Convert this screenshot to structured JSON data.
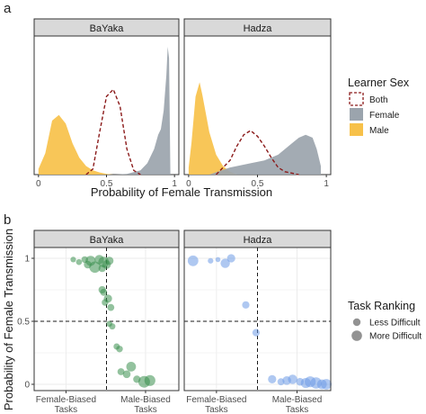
{
  "chart_data": [
    {
      "id": "a",
      "panel_letter": "a",
      "type": "area",
      "xlabel": "Probability of Female Transmission",
      "ylabel": "",
      "xlim": [
        0,
        1
      ],
      "x_ticks": [
        0,
        0.5,
        1
      ],
      "x_tick_labels": [
        "0",
        "0.5",
        "1"
      ],
      "grid": false,
      "legend_position": "right",
      "legend": {
        "title": "Learner Sex",
        "entries": [
          {
            "label": "Both",
            "color": "#8b1a1a",
            "style": "dashed-outline"
          },
          {
            "label": "Female",
            "color": "#9ba4ad",
            "style": "fill"
          },
          {
            "label": "Male",
            "color": "#f7c14a",
            "style": "fill"
          }
        ]
      },
      "facets": [
        {
          "label": "BaYaka",
          "series": [
            {
              "name": "Male",
              "color": "#f7c14a",
              "x": [
                0.0,
                0.05,
                0.1,
                0.15,
                0.2,
                0.25,
                0.3,
                0.35,
                0.4,
                0.45,
                0.5,
                0.55,
                0.6
              ],
              "y": [
                0.04,
                0.15,
                0.38,
                0.42,
                0.36,
                0.22,
                0.12,
                0.06,
                0.03,
                0.015,
                0.005,
                0.0,
                0.0
              ]
            },
            {
              "name": "Female",
              "color": "#9ba4ad",
              "x": [
                0.55,
                0.65,
                0.75,
                0.8,
                0.85,
                0.88,
                0.9,
                0.92,
                0.94,
                0.95,
                0.96,
                0.97
              ],
              "y": [
                0.0,
                0.005,
                0.03,
                0.08,
                0.18,
                0.28,
                0.32,
                0.45,
                0.7,
                0.9,
                0.82,
                0.0
              ]
            },
            {
              "name": "Both",
              "color": "#8b1a1a",
              "x": [
                0.35,
                0.4,
                0.45,
                0.5,
                0.55,
                0.6,
                0.65,
                0.7,
                0.75
              ],
              "y": [
                0.0,
                0.04,
                0.3,
                0.55,
                0.6,
                0.48,
                0.18,
                0.03,
                0.0
              ]
            }
          ]
        },
        {
          "label": "Hadza",
          "series": [
            {
              "name": "Male",
              "color": "#f7c14a",
              "x": [
                0.0,
                0.02,
                0.05,
                0.08,
                0.1,
                0.15,
                0.2,
                0.25,
                0.3,
                0.35
              ],
              "y": [
                0.05,
                0.22,
                0.55,
                0.65,
                0.56,
                0.3,
                0.14,
                0.06,
                0.02,
                0.0
              ]
            },
            {
              "name": "Female",
              "color": "#9ba4ad",
              "x": [
                0.15,
                0.3,
                0.45,
                0.55,
                0.65,
                0.75,
                0.8,
                0.85,
                0.9,
                0.93,
                0.96
              ],
              "y": [
                0.0,
                0.05,
                0.08,
                0.1,
                0.14,
                0.22,
                0.26,
                0.28,
                0.26,
                0.18,
                0.06
              ]
            },
            {
              "name": "Both",
              "color": "#8b1a1a",
              "x": [
                0.2,
                0.3,
                0.35,
                0.4,
                0.45,
                0.5,
                0.55,
                0.6,
                0.65,
                0.7,
                0.8
              ],
              "y": [
                0.0,
                0.1,
                0.2,
                0.28,
                0.31,
                0.27,
                0.2,
                0.12,
                0.05,
                0.02,
                0.0
              ]
            }
          ]
        }
      ]
    },
    {
      "id": "b",
      "panel_letter": "b",
      "type": "scatter",
      "xlabel": "",
      "ylabel": "Probability of Female Transmission",
      "ylim": [
        0,
        1
      ],
      "y_ticks": [
        0,
        0.5,
        1
      ],
      "y_tick_labels": [
        "0",
        "0.5",
        "1"
      ],
      "x_categories": [
        {
          "label_line1": "Female-Biased",
          "label_line2": "Tasks",
          "position": 0.22
        },
        {
          "label_line1": "Male-Biased",
          "label_line2": "Tasks",
          "position": 0.77
        }
      ],
      "grid": true,
      "reference_lines": {
        "y": 0.5,
        "x": 0.5
      },
      "legend_position": "right",
      "legend": {
        "title": "Task Ranking",
        "entries": [
          {
            "label": "Less Difficult",
            "size": "small"
          },
          {
            "label": "More Difficult",
            "size": "large"
          }
        ]
      },
      "facets": [
        {
          "label": "BaYaka",
          "color": "#3a8f4f",
          "points": [
            {
              "x": 0.27,
              "y": 0.99,
              "size": 0.2
            },
            {
              "x": 0.31,
              "y": 0.97,
              "size": 0.25
            },
            {
              "x": 0.35,
              "y": 0.99,
              "size": 0.35
            },
            {
              "x": 0.37,
              "y": 0.95,
              "size": 0.5
            },
            {
              "x": 0.39,
              "y": 0.98,
              "size": 0.8
            },
            {
              "x": 0.42,
              "y": 0.93,
              "size": 0.95
            },
            {
              "x": 0.45,
              "y": 0.99,
              "size": 0.7
            },
            {
              "x": 0.48,
              "y": 0.97,
              "size": 0.85
            },
            {
              "x": 0.5,
              "y": 0.95,
              "size": 0.6
            },
            {
              "x": 0.52,
              "y": 0.98,
              "size": 0.55
            },
            {
              "x": 0.47,
              "y": 0.92,
              "size": 0.45
            },
            {
              "x": 0.47,
              "y": 0.75,
              "size": 0.45
            },
            {
              "x": 0.48,
              "y": 0.73,
              "size": 0.4
            },
            {
              "x": 0.51,
              "y": 0.68,
              "size": 0.55
            },
            {
              "x": 0.49,
              "y": 0.65,
              "size": 0.35
            },
            {
              "x": 0.53,
              "y": 0.61,
              "size": 0.4
            },
            {
              "x": 0.54,
              "y": 0.46,
              "size": 0.3
            },
            {
              "x": 0.52,
              "y": 0.48,
              "size": 0.25
            },
            {
              "x": 0.57,
              "y": 0.3,
              "size": 0.3
            },
            {
              "x": 0.59,
              "y": 0.28,
              "size": 0.35
            },
            {
              "x": 0.6,
              "y": 0.1,
              "size": 0.4
            },
            {
              "x": 0.64,
              "y": 0.08,
              "size": 0.5
            },
            {
              "x": 0.67,
              "y": 0.14,
              "size": 0.75
            },
            {
              "x": 0.71,
              "y": 0.04,
              "size": 0.45
            },
            {
              "x": 0.76,
              "y": 0.02,
              "size": 1.0
            },
            {
              "x": 0.8,
              "y": 0.03,
              "size": 0.9
            }
          ]
        },
        {
          "label": "Hadza",
          "color": "#6d9ae6",
          "points": [
            {
              "x": 0.06,
              "y": 0.98,
              "size": 0.85
            },
            {
              "x": 0.18,
              "y": 0.98,
              "size": 0.2
            },
            {
              "x": 0.23,
              "y": 0.99,
              "size": 0.15
            },
            {
              "x": 0.28,
              "y": 0.96,
              "size": 0.7
            },
            {
              "x": 0.32,
              "y": 1.0,
              "size": 0.55
            },
            {
              "x": 0.42,
              "y": 0.63,
              "size": 0.45
            },
            {
              "x": 0.49,
              "y": 0.41,
              "size": 0.45
            },
            {
              "x": 0.6,
              "y": 0.04,
              "size": 0.55
            },
            {
              "x": 0.66,
              "y": 0.02,
              "size": 0.4
            },
            {
              "x": 0.7,
              "y": 0.03,
              "size": 0.6
            },
            {
              "x": 0.74,
              "y": 0.04,
              "size": 0.7
            },
            {
              "x": 0.79,
              "y": 0.02,
              "size": 0.5
            },
            {
              "x": 0.83,
              "y": 0.01,
              "size": 0.8
            },
            {
              "x": 0.86,
              "y": 0.02,
              "size": 0.9
            },
            {
              "x": 0.9,
              "y": 0.01,
              "size": 0.95
            },
            {
              "x": 0.94,
              "y": 0.0,
              "size": 0.75
            },
            {
              "x": 0.97,
              "y": 0.0,
              "size": 0.85
            }
          ]
        }
      ]
    }
  ]
}
